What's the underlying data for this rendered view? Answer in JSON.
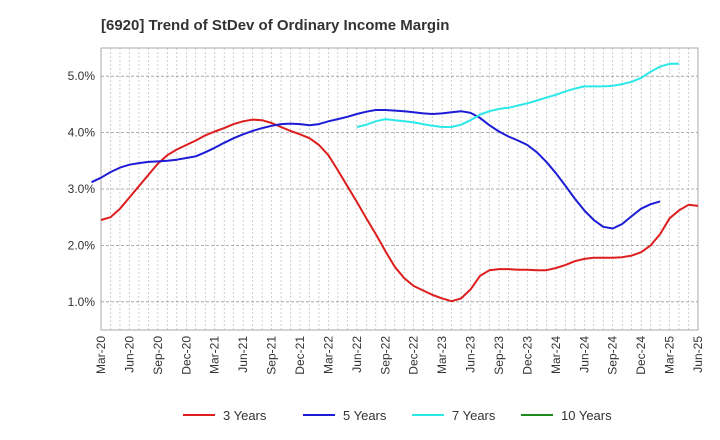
{
  "chart_data": {
    "type": "line",
    "title": "[6920]  Trend of StDev of Ordinary Income Margin",
    "xlabel": "",
    "ylabel": "",
    "x_ticks": [
      "Mar-20",
      "Jun-20",
      "Sep-20",
      "Dec-20",
      "Mar-21",
      "Jun-21",
      "Sep-21",
      "Dec-21",
      "Mar-22",
      "Jun-22",
      "Sep-22",
      "Dec-22",
      "Mar-23",
      "Jun-23",
      "Sep-23",
      "Dec-23",
      "Mar-24",
      "Jun-24",
      "Sep-24",
      "Dec-24",
      "Mar-25",
      "Jun-25"
    ],
    "y_ticks": [
      "1.0%",
      "2.0%",
      "3.0%",
      "4.0%",
      "5.0%"
    ],
    "ylim": [
      0.5,
      5.5
    ],
    "grid": "dashed",
    "legend_position": "bottom",
    "series": [
      {
        "name": "3 Years",
        "color": "#dd1e1e",
        "start": "Mar-20",
        "values": [
          2.45,
          2.5,
          2.65,
          2.85,
          3.05,
          3.25,
          3.45,
          3.6,
          3.7,
          3.78,
          3.86,
          3.95,
          4.02,
          4.08,
          4.15,
          4.2,
          4.23,
          4.22,
          4.17,
          4.1,
          4.03,
          3.97,
          3.9,
          3.78,
          3.6,
          3.33,
          3.05,
          2.77,
          2.48,
          2.2,
          1.9,
          1.62,
          1.42,
          1.28,
          1.2,
          1.12,
          1.06,
          1.01,
          1.06,
          1.22,
          1.46,
          1.56,
          1.58,
          1.58,
          1.57,
          1.57,
          1.56,
          1.56,
          1.6,
          1.65,
          1.72,
          1.76,
          1.78,
          1.78,
          1.78,
          1.79,
          1.82,
          1.88,
          2.0,
          2.2,
          2.48,
          2.62,
          2.72,
          2.7
        ]
      },
      {
        "name": "5 Years",
        "color": "#1c1cd6",
        "start": "Feb-20",
        "values": [
          3.12,
          3.2,
          3.3,
          3.38,
          3.43,
          3.46,
          3.48,
          3.49,
          3.5,
          3.52,
          3.55,
          3.58,
          3.65,
          3.73,
          3.82,
          3.9,
          3.97,
          4.03,
          4.08,
          4.12,
          4.15,
          4.16,
          4.15,
          4.13,
          4.15,
          4.2,
          4.24,
          4.28,
          4.33,
          4.37,
          4.4,
          4.4,
          4.39,
          4.38,
          4.36,
          4.34,
          4.33,
          4.34,
          4.36,
          4.38,
          4.35,
          4.26,
          4.13,
          4.02,
          3.93,
          3.86,
          3.78,
          3.65,
          3.48,
          3.28,
          3.06,
          2.83,
          2.62,
          2.45,
          2.33,
          2.3,
          2.38,
          2.52,
          2.65,
          2.73,
          2.78
        ]
      },
      {
        "name": "7 Years",
        "color": "#2ce8e8",
        "start": "Jun-22",
        "values": [
          4.1,
          4.14,
          4.2,
          4.24,
          4.22,
          4.2,
          4.18,
          4.15,
          4.12,
          4.1,
          4.1,
          4.14,
          4.22,
          4.32,
          4.38,
          4.42,
          4.44,
          4.48,
          4.52,
          4.57,
          4.62,
          4.67,
          4.73,
          4.78,
          4.82,
          4.82,
          4.82,
          4.83,
          4.86,
          4.9,
          4.97,
          5.08,
          5.17,
          5.22,
          5.22
        ]
      },
      {
        "name": "10 Years",
        "color": "#1d8a1d",
        "start": "",
        "values": []
      }
    ]
  }
}
